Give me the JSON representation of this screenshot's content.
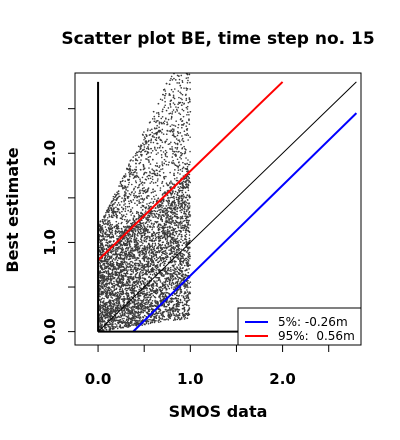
{
  "chart_data": {
    "type": "scatter",
    "title": "Scatter plot BE, time step no. 15",
    "xlabel": "SMOS data",
    "ylabel": "Best estimate",
    "xlim": [
      -0.25,
      2.85
    ],
    "ylim": [
      -0.15,
      2.9
    ],
    "x_ticks": [
      0.0,
      0.5,
      1.0,
      1.5,
      2.0,
      2.5
    ],
    "x_tick_labels": [
      "0.0",
      "",
      "1.0",
      "",
      "2.0",
      ""
    ],
    "y_ticks": [
      0.0,
      0.5,
      1.0,
      1.5,
      2.0,
      2.5
    ],
    "y_tick_labels": [
      "0.0",
      "",
      "1.0",
      "",
      "2.0",
      ""
    ],
    "point_color": "#3a3a3a",
    "scatter_cloud": {
      "x_range": [
        0.0,
        1.0
      ],
      "y_min": 0.0,
      "y_max": 2.9,
      "dense_upper_at_x0": 0.85,
      "dense_upper_at_x1": 1.85,
      "dense_lower_at_x0": 0.0,
      "dense_lower_at_x1": 0.15
    },
    "series": [
      {
        "name": "5%: -0.26m",
        "type": "line",
        "color": "#0000ff",
        "x": [
          0.38,
          2.8
        ],
        "y": [
          0.0,
          2.45
        ]
      },
      {
        "name": "95%:  0.56m",
        "type": "line",
        "color": "#ff0000",
        "x": [
          0.0,
          2.0
        ],
        "y": [
          0.8,
          2.8
        ]
      },
      {
        "type": "line",
        "color": "#000000",
        "x": [
          0.0,
          2.8
        ],
        "y": [
          0.0,
          2.8
        ]
      },
      {
        "type": "line",
        "color": "#000000",
        "x": [
          0.0,
          0.0
        ],
        "y": [
          0.0,
          2.8
        ]
      },
      {
        "type": "line",
        "color": "#000000",
        "x": [
          0.0,
          2.8
        ],
        "y": [
          0.0,
          0.0
        ]
      }
    ],
    "legend": {
      "position": "bottom-right",
      "entries": [
        {
          "label": "5%: -0.26m",
          "color": "#0000ff"
        },
        {
          "label": "95%:  0.56m",
          "color": "#ff0000"
        }
      ]
    }
  }
}
